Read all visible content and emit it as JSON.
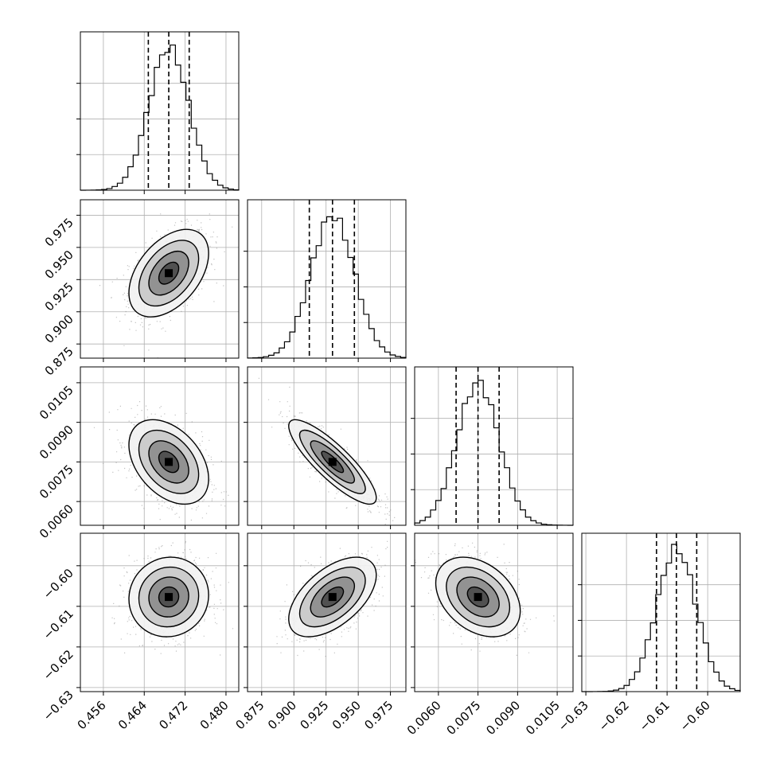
{
  "chart_data": {
    "type": "corner",
    "grid": true,
    "parameters": [
      {
        "range": [
          0.4515,
          0.4825
        ],
        "ticks": [
          0.456,
          0.464,
          0.472,
          0.48
        ],
        "tick_labels": [
          "0.456",
          "0.464",
          "0.472",
          "0.480"
        ],
        "quantiles": [
          0.4648,
          0.4688,
          0.4728
        ],
        "mean": 0.4688,
        "sd": 0.0039,
        "hist_peak": 0.47
      },
      {
        "range": [
          0.864,
          0.987
        ],
        "ticks": [
          0.875,
          0.9,
          0.925,
          0.95,
          0.975
        ],
        "tick_labels": [
          "0.875",
          "0.900",
          "0.925",
          "0.950",
          "0.975"
        ],
        "quantiles": [
          0.912,
          0.93,
          0.947
        ],
        "mean": 0.93,
        "sd": 0.017,
        "hist_peak": 0.929
      },
      {
        "range": [
          0.0051,
          0.0111
        ],
        "ticks": [
          0.006,
          0.0075,
          0.009,
          0.0105
        ],
        "tick_labels": [
          "0.0060",
          "0.0075",
          "0.0090",
          "0.0105"
        ],
        "quantiles": [
          0.00667,
          0.0075,
          0.0083
        ],
        "mean": 0.0075,
        "sd": 0.0008,
        "hist_peak": 0.0074
      },
      {
        "range": [
          -0.631,
          -0.592
        ],
        "ticks": [
          -0.63,
          -0.62,
          -0.61,
          -0.6
        ],
        "tick_labels": [
          "−0.63",
          "−0.62",
          "−0.61",
          "−0.60"
        ],
        "y_tick_labels": [
          "−0.60",
          "−0.61",
          "−0.62",
          "−0.63"
        ],
        "quantiles": [
          -0.6126,
          -0.6077,
          -0.6027
        ],
        "mean": -0.6077,
        "sd": 0.0049,
        "hist_peak": -0.6085
      }
    ],
    "correlations": {
      "1-0": 0.45,
      "2-0": -0.4,
      "2-1": -0.85,
      "3-0": 0.05,
      "3-1": 0.55,
      "3-2": -0.35
    },
    "colors": {
      "line": "#000000",
      "scatter": "#777777",
      "grid": "#b0b0b0"
    }
  }
}
